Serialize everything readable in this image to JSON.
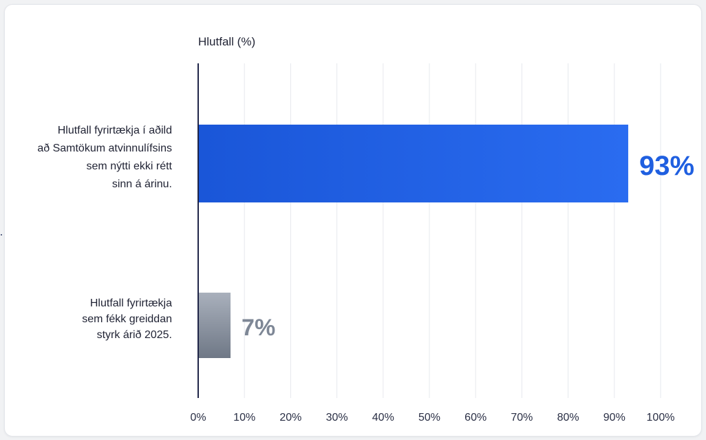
{
  "chart_data": {
    "type": "bar",
    "orientation": "horizontal",
    "xlabel": "Hlutfall (%)",
    "xlim": [
      0,
      100
    ],
    "x_ticks": [
      "0%",
      "10%",
      "20%",
      "30%",
      "40%",
      "50%",
      "60%",
      "70%",
      "80%",
      "90%",
      "100%"
    ],
    "grid": true,
    "categories": [
      [
        "Hlutfall fyrirtækja í aðild",
        "að Samtökum atvinnulífsins",
        "sem nýtti ekki rétt",
        "sinn á árinu."
      ],
      [
        "Hlutfall fyrirtækja",
        "sem fékk greiddan",
        "styrk árið 2025."
      ]
    ],
    "values": [
      93,
      7
    ],
    "value_labels": [
      "93%",
      "7%"
    ],
    "colors": {
      "bar_primary": "#1f5fe0",
      "bar_secondary": "#8a93a3",
      "label_primary": "#1f5fe0",
      "label_secondary": "#7e8796",
      "axis": "#1f2447",
      "grid": "#e6e8ed",
      "text": "#1f2233"
    }
  }
}
